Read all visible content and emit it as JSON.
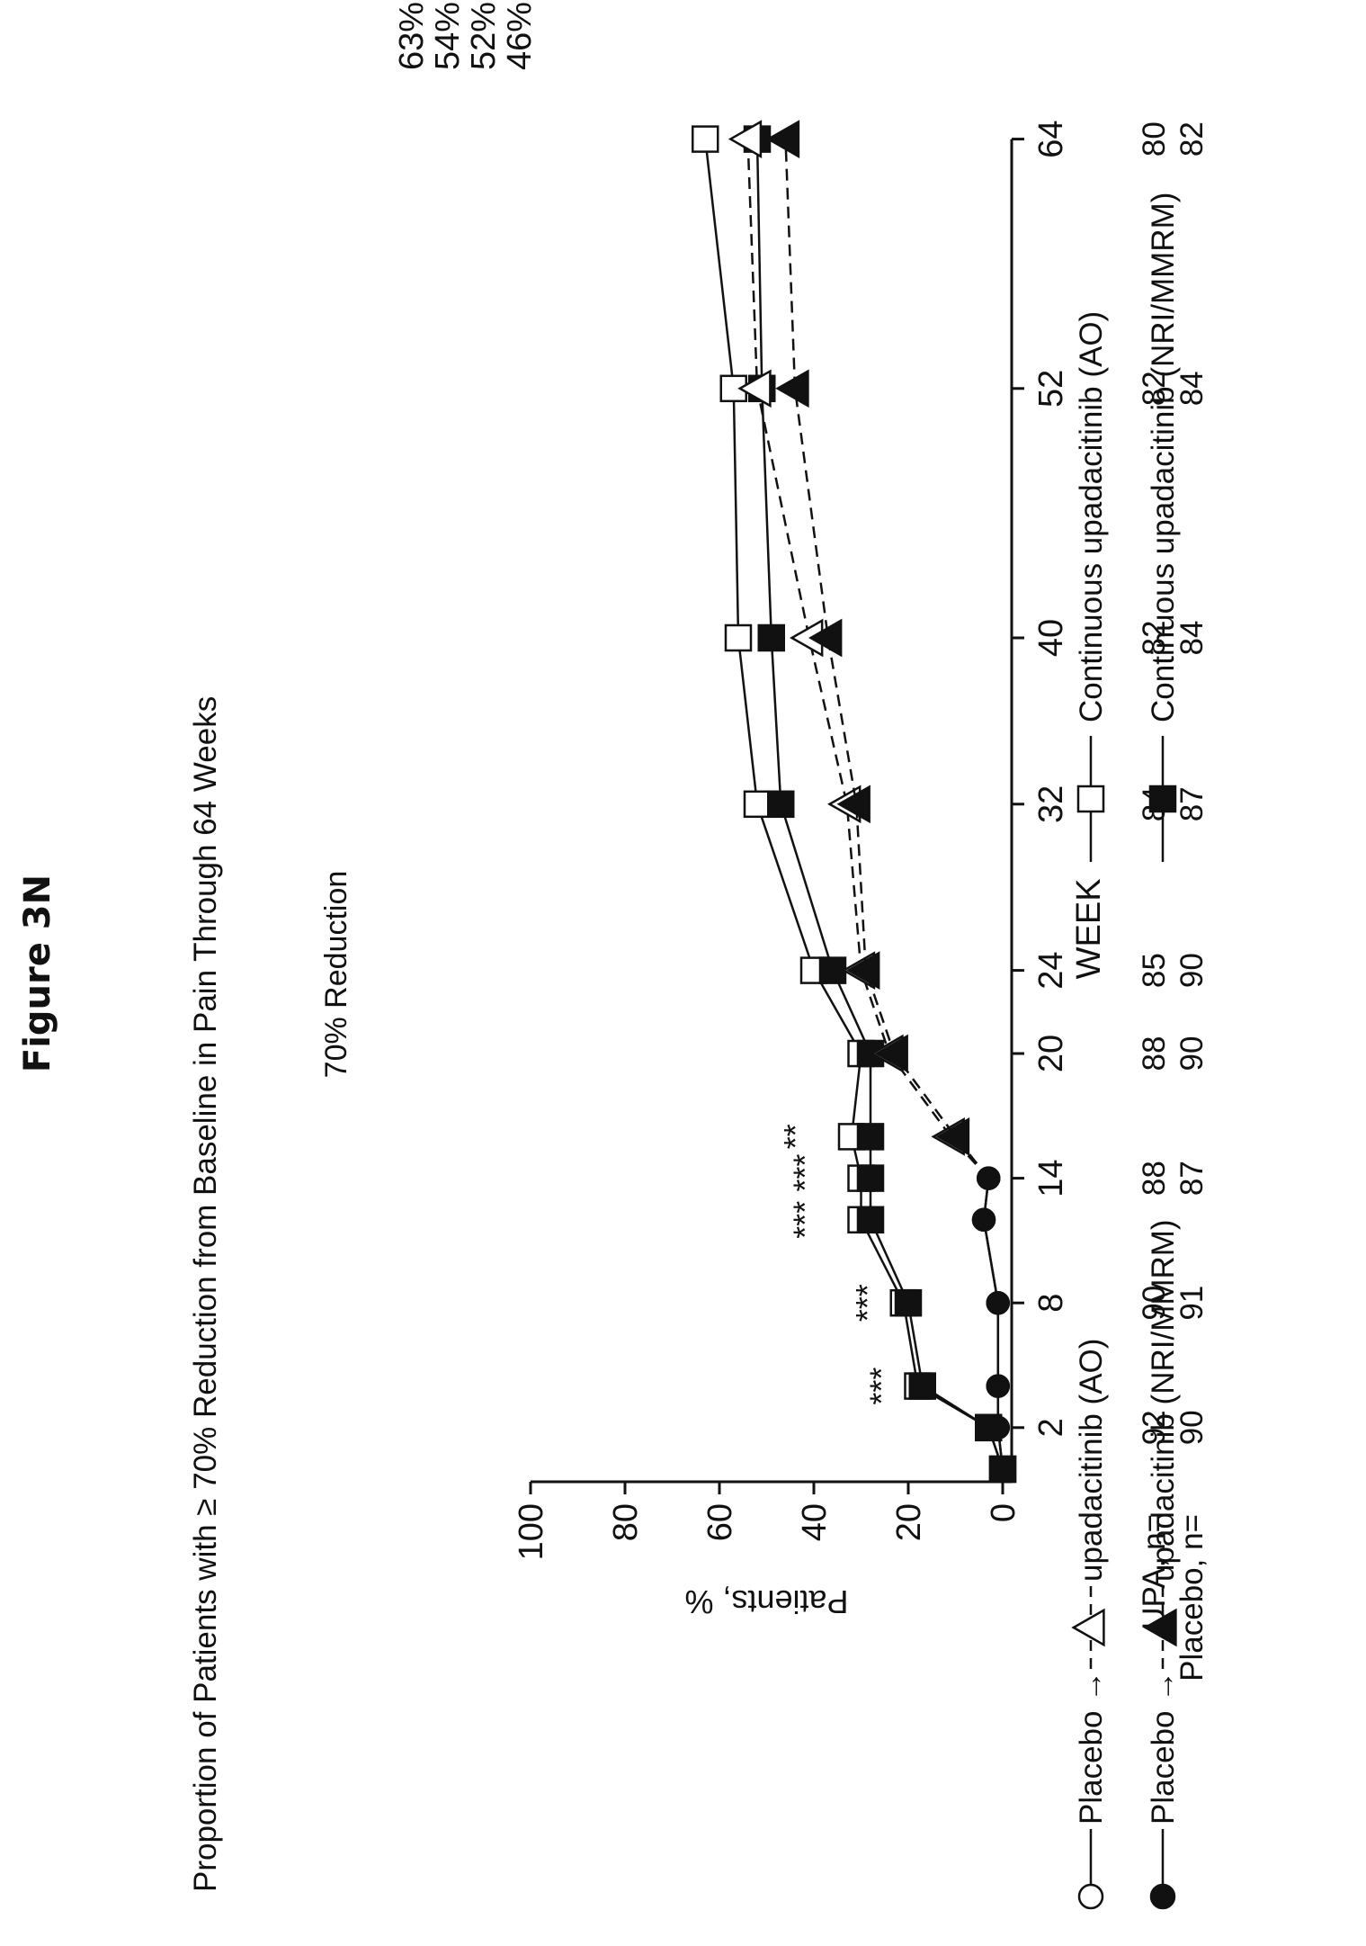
{
  "figure_label": "Figure 3N",
  "chart_title": "Proportion of Patients with ≥ 70% Reduction from Baseline in Pain Through 64 Weeks",
  "panel_title": "70% Reduction",
  "chart_data": {
    "type": "line",
    "title": "70% Reduction",
    "xlabel": "WEEK",
    "ylabel": "Patients, %",
    "ylim": [
      0,
      100
    ],
    "yticks": [
      0,
      20,
      40,
      60,
      80,
      100
    ],
    "xticks": [
      2,
      8,
      14,
      20,
      24,
      32,
      40,
      52,
      64
    ],
    "grid": false,
    "series": [
      {
        "name": "Continuous upadacitinib (AO)",
        "marker": "open-square",
        "line": "solid",
        "x": [
          0,
          2,
          4,
          8,
          12,
          14,
          16,
          20,
          24,
          32,
          40,
          52,
          64
        ],
        "y": [
          0,
          3,
          18,
          21,
          30,
          30,
          32,
          30,
          40,
          52,
          56,
          57,
          63
        ]
      },
      {
        "name": "Continuous upadacitinib (NRI/MMRM)",
        "marker": "filled-square",
        "line": "solid",
        "x": [
          0,
          2,
          4,
          8,
          12,
          14,
          16,
          20,
          24,
          32,
          40,
          52,
          64
        ],
        "y": [
          0,
          3,
          17,
          20,
          28,
          28,
          28,
          28,
          36,
          47,
          49,
          51,
          52
        ]
      },
      {
        "name": "Placebo → upadacitinib (AO)",
        "marker": "open-circle → open-triangle",
        "line": "solid → dashed",
        "x": [
          0,
          2,
          4,
          8,
          12,
          14,
          16,
          20,
          24,
          32,
          40,
          52,
          64
        ],
        "y": [
          0,
          1,
          1,
          1,
          4,
          3,
          11,
          24,
          30,
          33,
          41,
          52,
          54
        ]
      },
      {
        "name": "Placebo → upadacitinib (NRI/MMRM)",
        "marker": "filled-circle → filled-triangle",
        "line": "solid → dashed",
        "x": [
          0,
          2,
          4,
          8,
          12,
          14,
          16,
          20,
          24,
          32,
          40,
          52,
          64
        ],
        "y": [
          0,
          1,
          1,
          1,
          4,
          3,
          10,
          23,
          29,
          31,
          37,
          44,
          46
        ]
      }
    ],
    "end_labels": [
      "63%",
      "54%",
      "52%",
      "46%"
    ],
    "significance": [
      {
        "x": 4,
        "label": "***"
      },
      {
        "x": 8,
        "label": "***"
      },
      {
        "x": 12,
        "label": "***"
      },
      {
        "x": 14,
        "label": "***"
      },
      {
        "x": 16,
        "label": "**"
      }
    ],
    "n_table": {
      "rows": [
        {
          "label": "UPA, n=",
          "values": [
            "92",
            "90",
            "88",
            "88",
            "85",
            "84",
            "82",
            "82",
            "80"
          ]
        },
        {
          "label": "Placebo, n=",
          "values": [
            "90",
            "91",
            "87",
            "90",
            "90",
            "87",
            "84",
            "84",
            "82"
          ]
        }
      ]
    },
    "legend": [
      {
        "text_before": "Placebo →",
        "text_after": "upadacitinib (AO)"
      },
      {
        "text_before": "Placebo →",
        "text_after": "upadacitinib (NRI/MMRM)"
      },
      {
        "text_before": "",
        "text_after": "Continuous upadacitinib (AO)"
      },
      {
        "text_before": "",
        "text_after": "Continuous upadacitinib (NRI/MMRM)"
      }
    ],
    "legend_position": "bottom"
  }
}
